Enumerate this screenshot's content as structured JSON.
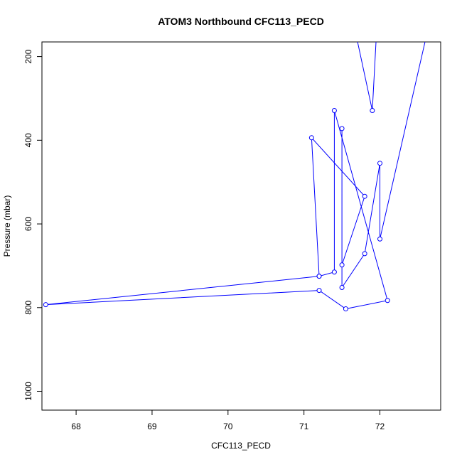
{
  "chart_data": {
    "type": "line",
    "title": "ATOM3 Northbound CFC113_PECD",
    "xlabel": "CFC113_PECD",
    "ylabel": "Pressure (mbar)",
    "xlim": [
      67.55,
      72.8
    ],
    "ylim": [
      1045,
      165
    ],
    "y_reversed": true,
    "x_ticks": [
      68,
      69,
      70,
      71,
      72
    ],
    "y_ticks": [
      200,
      400,
      600,
      800,
      1000
    ],
    "grid": false,
    "series": [
      {
        "color": "#0000ff",
        "points": [
          {
            "x": 71.7,
            "y": 160
          },
          {
            "x": 71.9,
            "y": 329
          },
          {
            "x": 71.95,
            "y": 160
          }
        ]
      },
      {
        "color": "#0000ff",
        "points": [
          {
            "x": 72.6,
            "y": 160
          },
          {
            "x": 72.0,
            "y": 636
          },
          {
            "x": 72.0,
            "y": 455
          },
          {
            "x": 71.8,
            "y": 671
          },
          {
            "x": 71.5,
            "y": 752
          },
          {
            "x": 71.5,
            "y": 372
          },
          {
            "x": 71.5,
            "y": 698
          },
          {
            "x": 71.8,
            "y": 534
          },
          {
            "x": 71.1,
            "y": 394
          },
          {
            "x": 71.2,
            "y": 725
          },
          {
            "x": 71.4,
            "y": 715
          },
          {
            "x": 71.4,
            "y": 329
          },
          {
            "x": 72.1,
            "y": 783
          },
          {
            "x": 71.55,
            "y": 803
          },
          {
            "x": 71.2,
            "y": 759
          },
          {
            "x": 67.6,
            "y": 793
          },
          {
            "x": 71.2,
            "y": 725
          }
        ]
      }
    ]
  }
}
